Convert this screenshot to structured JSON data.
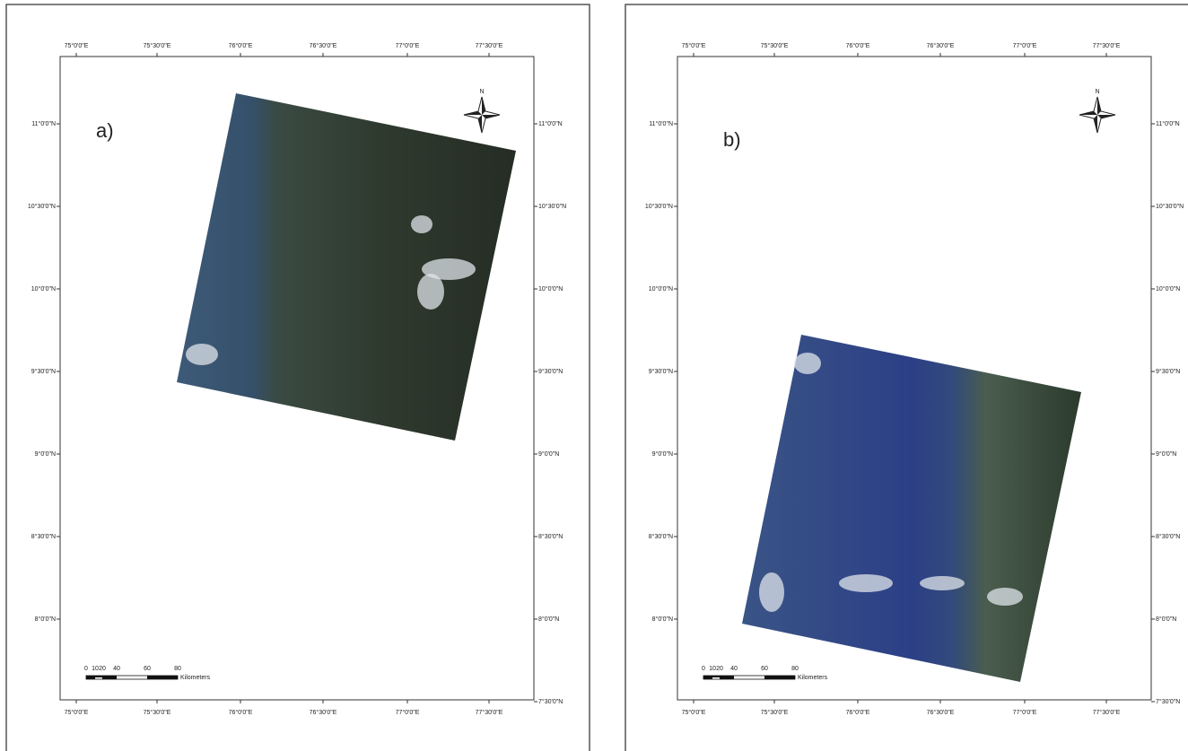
{
  "panels": [
    {
      "label": "a)",
      "top_ticks": [
        "75°0'0\"E",
        "75°30'0\"E",
        "76°0'0\"E",
        "76°30'0\"E",
        "77°0'0\"E",
        "77°30'0\"E"
      ],
      "bottom_ticks": [
        "75°0'0\"E",
        "75°30'0\"E",
        "76°0'0\"E",
        "76°30'0\"E",
        "77°0'0\"E",
        "77°30'0\"E"
      ],
      "left_ticks": [
        "11°0'0\"N",
        "10°30'0\"N",
        "10°0'0\"N",
        "9°30'0\"N",
        "9°0'0\"N",
        "8°30'0\"N",
        "8°0'0\"N"
      ],
      "right_ticks": [
        "11°0'0\"N",
        "10°30'0\"N",
        "10°0'0\"N",
        "9°30'0\"N",
        "9°0'0\"N",
        "8°30'0\"N",
        "8°0'0\"N",
        "7°30'0\"N"
      ],
      "north": "N",
      "scale_labels": [
        "0",
        "10",
        "20",
        "40",
        "60",
        "80"
      ],
      "scale_unit": "Kilometers"
    },
    {
      "label": "b)",
      "top_ticks": [
        "75°0'0\"E",
        "75°30'0\"E",
        "76°0'0\"E",
        "76°30'0\"E",
        "77°0'0\"E",
        "77°30'0\"E"
      ],
      "bottom_ticks": [
        "75°0'0\"E",
        "75°30'0\"E",
        "76°0'0\"E",
        "76°30'0\"E",
        "77°0'0\"E",
        "77°30'0\"E"
      ],
      "left_ticks": [
        "11°0'0\"N",
        "10°30'0\"N",
        "10°0'0\"N",
        "9°30'0\"N",
        "9°0'0\"N",
        "8°30'0\"N",
        "8°0'0\"N"
      ],
      "right_ticks": [
        "11°0'0\"N",
        "10°30'0\"N",
        "10°0'0\"N",
        "9°30'0\"N",
        "9°0'0\"N",
        "8°30'0\"N",
        "8°0'0\"N",
        "7°30'0\"N"
      ],
      "north": "N",
      "scale_labels": [
        "0",
        "10",
        "20",
        "40",
        "60",
        "80"
      ],
      "scale_unit": "Kilometers"
    }
  ]
}
